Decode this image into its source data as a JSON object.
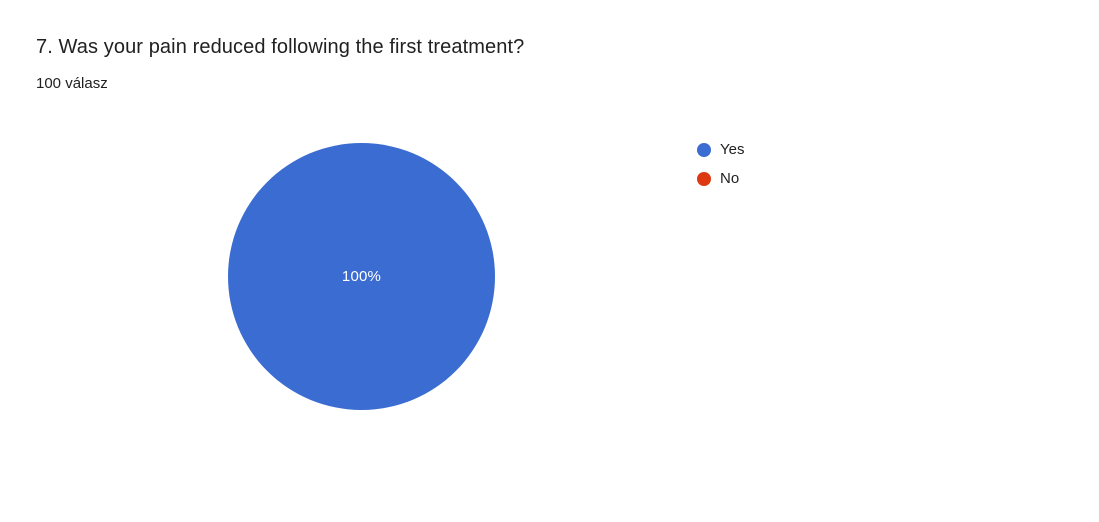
{
  "chart_data": {
    "type": "pie",
    "title": "7. Was your pain reduced following the first treatment?",
    "subtitle": "100 válasz",
    "responses_count": 100,
    "labels": [
      "Yes",
      "No"
    ],
    "values_percent": [
      100,
      0
    ],
    "colors": [
      "#3b6cd1",
      "#dc3912"
    ],
    "center_label": "100%",
    "legend_position": "right",
    "text_color": "#212121",
    "background_color": "#ffffff"
  }
}
